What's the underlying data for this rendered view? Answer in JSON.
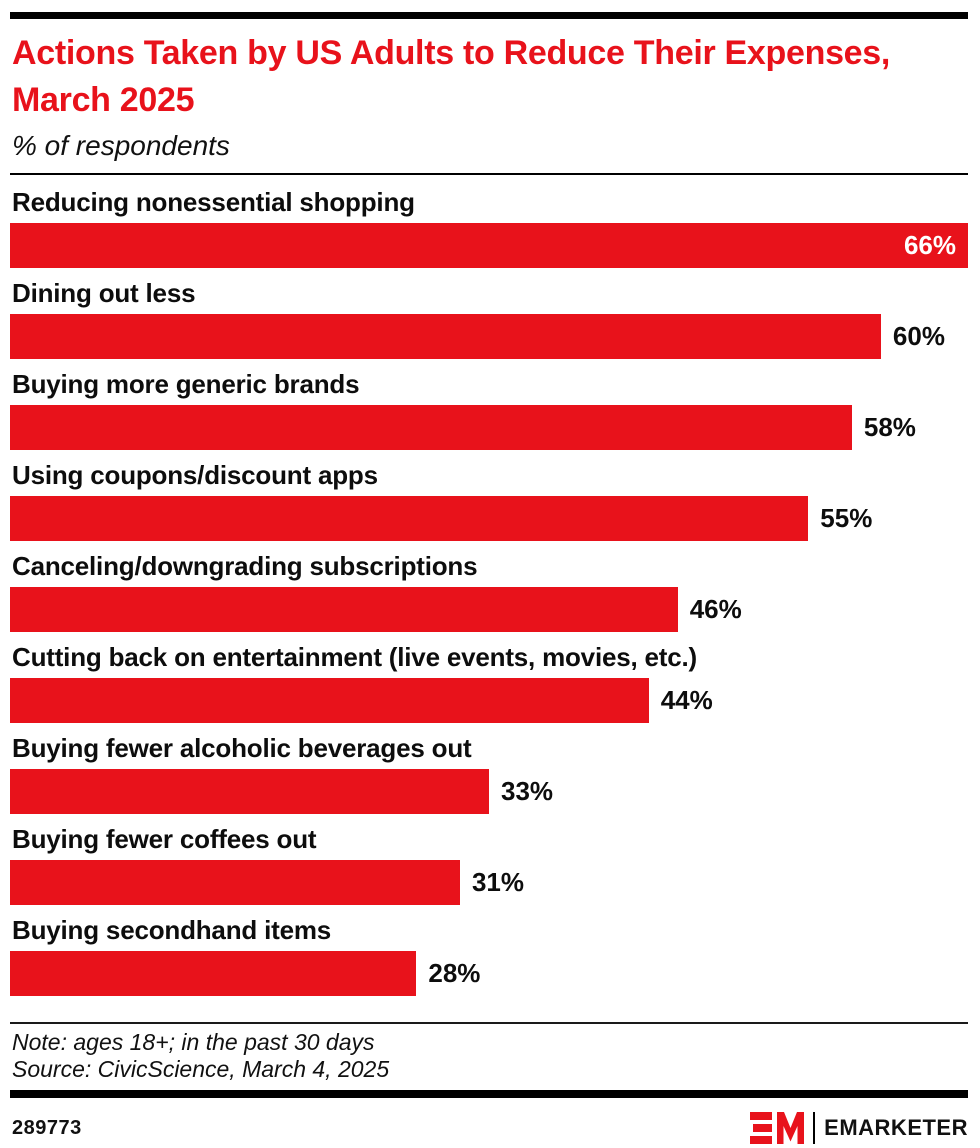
{
  "accent_red": "#E8121B",
  "header": {
    "title": "Actions Taken by US Adults to Reduce Their Expenses, March 2025",
    "subtitle": "% of respondents"
  },
  "chart_data": {
    "type": "bar",
    "orientation": "horizontal",
    "title": "Actions Taken by US Adults to Reduce Their Expenses, March 2025",
    "subtitle": "% of respondents",
    "categories": [
      "Reducing nonessential shopping",
      "Dining out less",
      "Buying more generic brands",
      "Using coupons/discount apps",
      "Canceling/downgrading subscriptions",
      "Cutting back on entertainment (live events, movies, etc.)",
      "Buying fewer alcoholic beverages out",
      "Buying fewer coffees out",
      "Buying secondhand items"
    ],
    "values": [
      66,
      60,
      58,
      55,
      46,
      44,
      33,
      31,
      28
    ],
    "value_labels": [
      "66%",
      "60%",
      "58%",
      "55%",
      "46%",
      "44%",
      "33%",
      "31%",
      "28%"
    ],
    "xlim": [
      0,
      66
    ],
    "bar_color": "#E8121B",
    "grid": false,
    "legend": false
  },
  "footer": {
    "note": "Note: ages 18+; in the past 30 days",
    "source": "Source: CivicScience, March 4, 2025",
    "chart_id": "289773",
    "brand_name": "EMARKETER"
  }
}
